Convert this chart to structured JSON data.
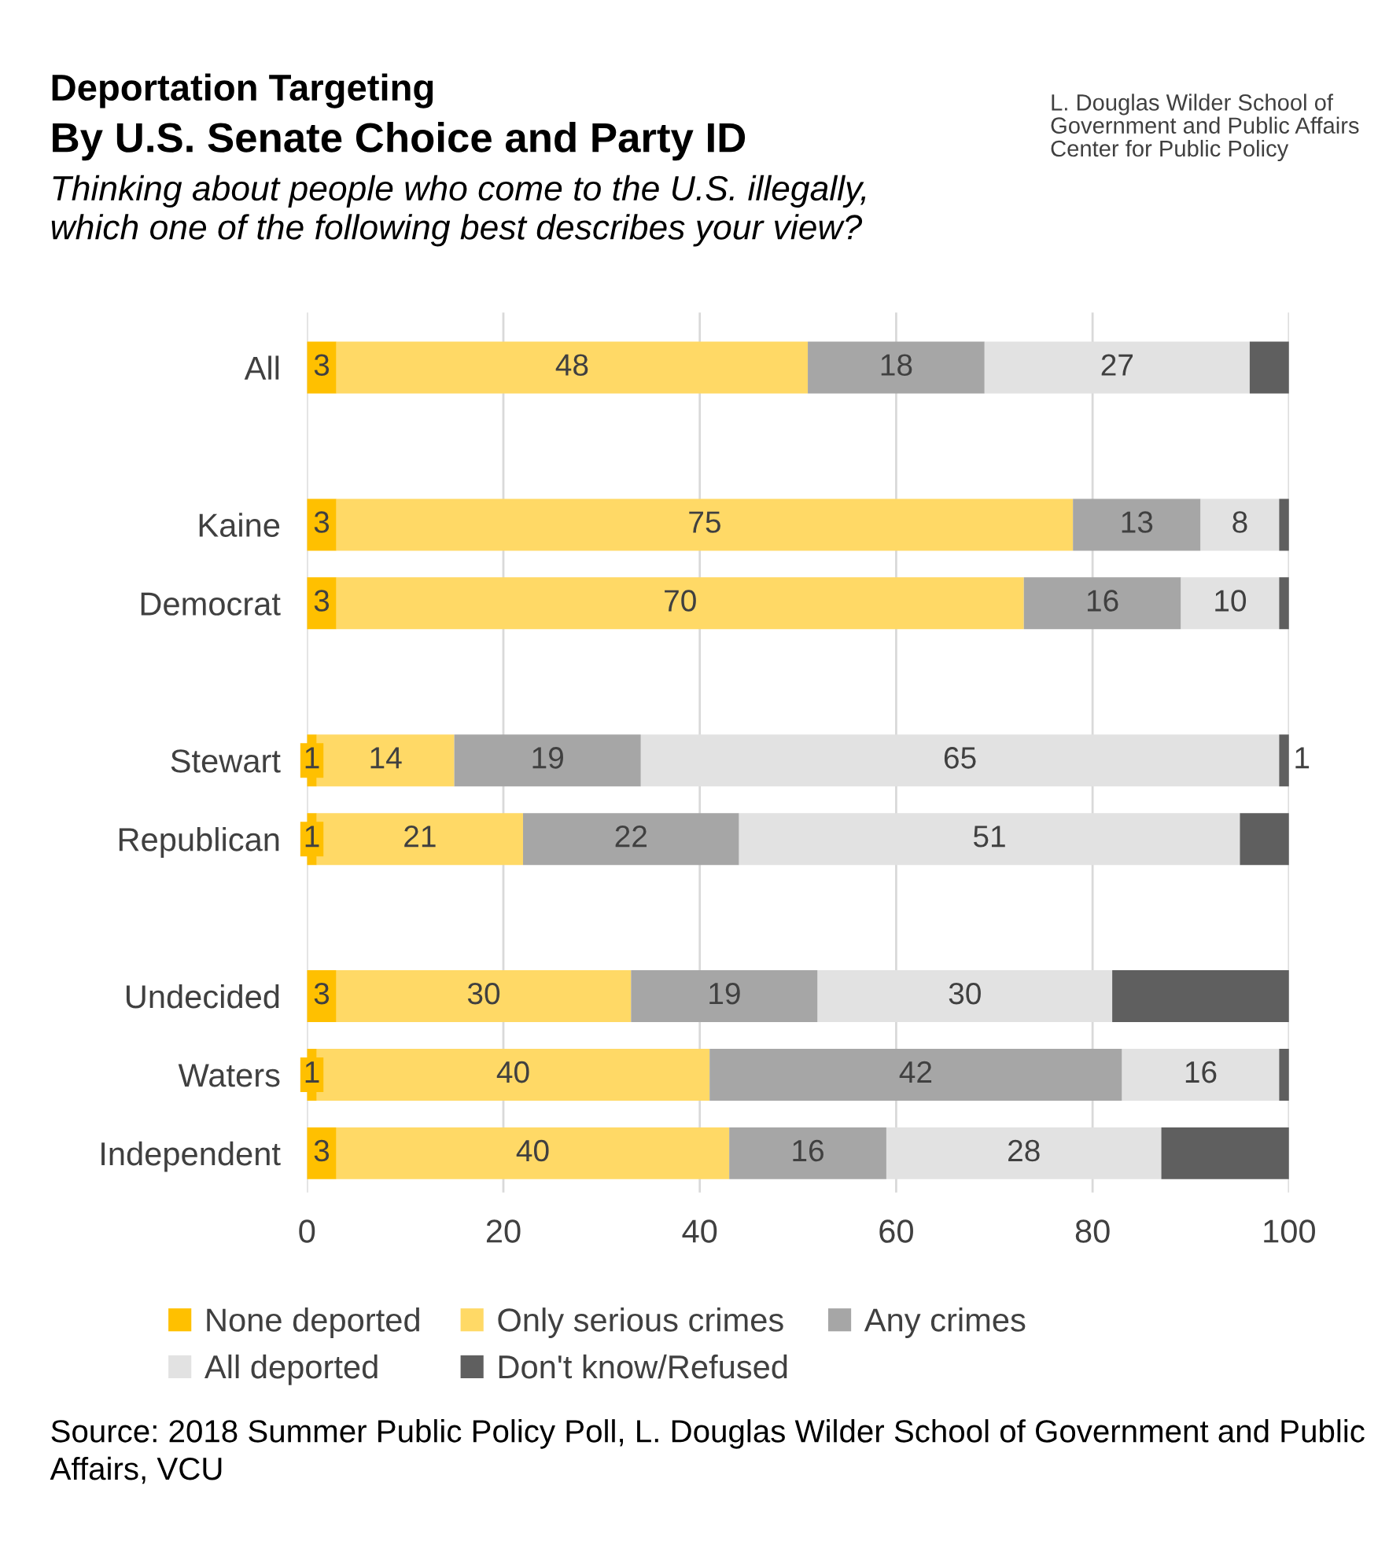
{
  "chart_data": {
    "type": "bar",
    "orientation": "horizontal",
    "stacked": true,
    "title": "Deportation Targeting\nBy U.S. Senate Choice and Party ID",
    "subtitle": "Thinking about people who come to the U.S. illegally,\nwhich one of the following best describes your view?",
    "categories": [
      "All",
      null,
      "Kaine",
      "Democrat",
      null,
      "Stewart",
      "Republican",
      null,
      "Undecided",
      "Waters",
      "Independent"
    ],
    "series": [
      {
        "name": "None deported",
        "color": "#ffc000",
        "values": [
          3,
          null,
          3,
          3,
          null,
          1,
          1,
          null,
          3,
          1,
          3
        ],
        "value_labels": [
          "3",
          null,
          "3",
          "3",
          null,
          "1",
          "1",
          null,
          "3",
          "1",
          "3"
        ]
      },
      {
        "name": "Only serious crimes",
        "color": "#ffd966",
        "values": [
          48,
          null,
          75,
          70,
          null,
          14,
          21,
          null,
          30,
          40,
          40
        ],
        "value_labels": [
          "48",
          null,
          "75",
          "70",
          null,
          "14",
          "21",
          null,
          "30",
          "40",
          "40"
        ]
      },
      {
        "name": "Any crimes",
        "color": "#a6a6a6",
        "values": [
          18,
          null,
          13,
          16,
          null,
          19,
          22,
          null,
          19,
          42,
          16
        ],
        "value_labels": [
          "18",
          null,
          "13",
          "16",
          null,
          "19",
          "22",
          null,
          "19",
          "42",
          "16"
        ]
      },
      {
        "name": "All deported",
        "color": "#e2e2e2",
        "values": [
          27,
          null,
          8,
          10,
          null,
          65,
          51,
          null,
          30,
          16,
          28
        ],
        "value_labels": [
          "27",
          null,
          "8",
          "10",
          null,
          "65",
          "51",
          null,
          "30",
          "16",
          "28"
        ]
      },
      {
        "name": "Don't know/Refused",
        "color": "#5f5f5f",
        "values": [
          4,
          null,
          1,
          1,
          null,
          1,
          5,
          null,
          18,
          1,
          13
        ],
        "value_labels": [
          null,
          null,
          null,
          null,
          null,
          "1",
          null,
          null,
          null,
          null,
          null
        ]
      }
    ],
    "xlim": [
      0,
      100
    ],
    "xticks": [
      0,
      20,
      40,
      60,
      80,
      100
    ],
    "grid": "x",
    "legend": "bottom",
    "annotations": [
      "L. Douglas Wilder School of\nGovernment and Public Affairs\nCenter for Public Policy",
      "Source: 2018 Summer Public Policy Poll, L. Douglas Wilder School of Government and Public Affairs, VCU"
    ]
  }
}
